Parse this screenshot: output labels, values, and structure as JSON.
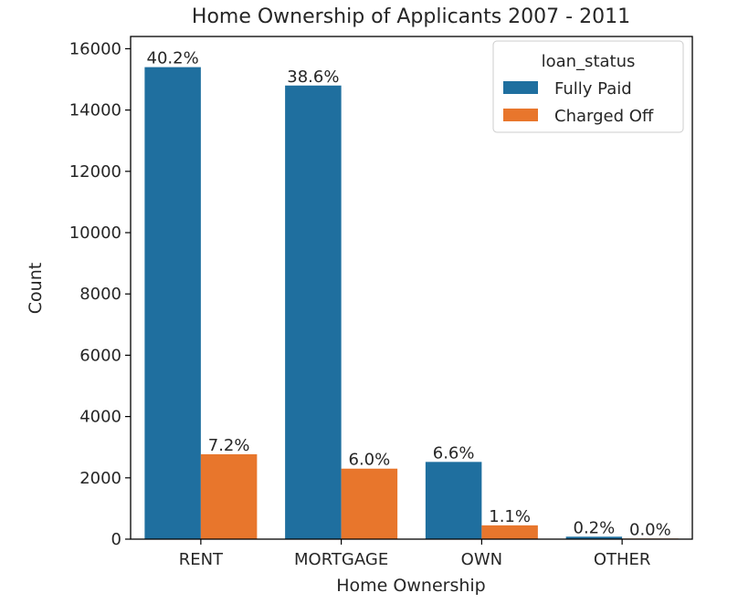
{
  "chart_data": {
    "type": "bar",
    "title": "Home Ownership of Applicants 2007 - 2011",
    "xlabel": "Home Ownership",
    "ylabel": "Count",
    "ylim": [
      0,
      16400
    ],
    "yticks": [
      0,
      2000,
      4000,
      6000,
      8000,
      10000,
      12000,
      14000,
      16000
    ],
    "categories": [
      "RENT",
      "MORTGAGE",
      "OWN",
      "OTHER"
    ],
    "series": [
      {
        "name": "Fully Paid",
        "color": "#1f6f9f",
        "values": [
          15400,
          14800,
          2520,
          80
        ],
        "labels": [
          "40.2%",
          "38.6%",
          "6.6%",
          "0.2%"
        ]
      },
      {
        "name": "Charged Off",
        "color": "#e8762c",
        "values": [
          2770,
          2300,
          450,
          20
        ],
        "labels": [
          "7.2%",
          "6.0%",
          "1.1%",
          "0.0%"
        ]
      }
    ],
    "legend": {
      "title": "loan_status",
      "placement": "top-right"
    },
    "grid": false
  }
}
